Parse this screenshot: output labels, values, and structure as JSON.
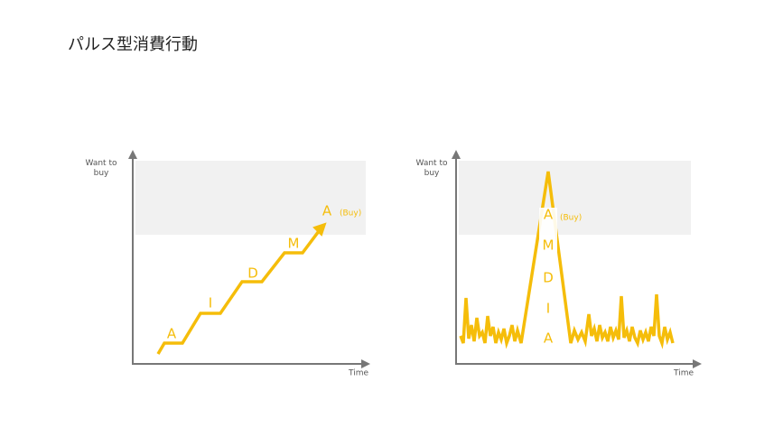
{
  "header": {
    "title": "パルス型消費行動"
  },
  "panels": [
    {
      "y_axis_label": "Want to\nbuy",
      "x_axis_label": "Time",
      "stages": [
        "A",
        "I",
        "D",
        "M",
        "A"
      ],
      "buy_label": "(Buy)"
    },
    {
      "y_axis_label": "Want to\nbuy",
      "x_axis_label": "Time",
      "stages": [
        "A",
        "I",
        "D",
        "M",
        "A"
      ],
      "buy_label": "(Buy)"
    }
  ]
}
